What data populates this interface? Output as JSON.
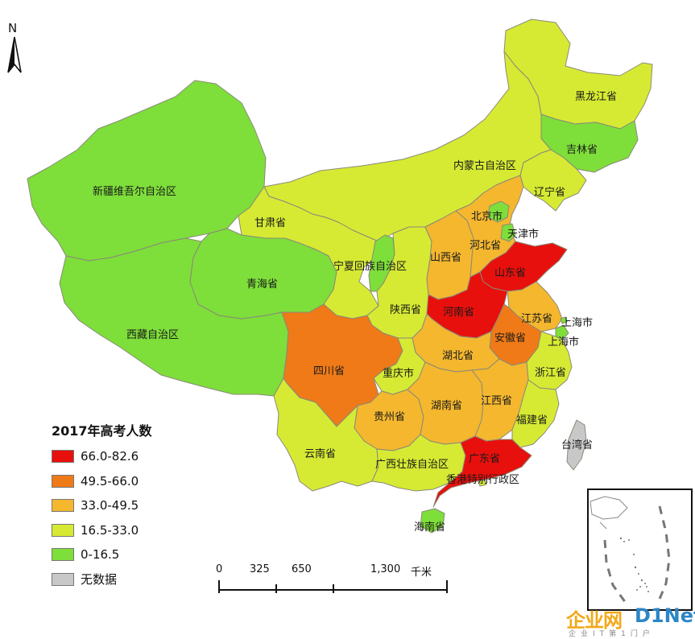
{
  "legend": {
    "title": "2017年高考人数",
    "classes": [
      {
        "range": "66.0-82.6",
        "color": "#e8100c"
      },
      {
        "range": "49.5-66.0",
        "color": "#ef7a17"
      },
      {
        "range": "33.0-49.5",
        "color": "#f4b72e"
      },
      {
        "range": "16.5-33.0",
        "color": "#d6ea33"
      },
      {
        "range": "0-16.5",
        "color": "#7ede3a"
      },
      {
        "range": "无数据",
        "color": "#c8c8c8"
      }
    ]
  },
  "north_arrow": {
    "label": "N"
  },
  "scale_bar": {
    "ticks": [
      "0",
      "325",
      "650",
      "1,300"
    ],
    "unit": "千米"
  },
  "provinces": [
    {
      "name": "黑龙江省",
      "class": 3
    },
    {
      "name": "吉林省",
      "class": 4
    },
    {
      "name": "辽宁省",
      "class": 3
    },
    {
      "name": "内蒙古自治区",
      "class": 3
    },
    {
      "name": "新疆维吾尔自治区",
      "class": 4
    },
    {
      "name": "西藏自治区",
      "class": 4
    },
    {
      "name": "青海省",
      "class": 4
    },
    {
      "name": "甘肃省",
      "class": 3
    },
    {
      "name": "宁夏回族自治区",
      "class": 4
    },
    {
      "name": "陕西省",
      "class": 3
    },
    {
      "name": "山西省",
      "class": 2
    },
    {
      "name": "河北省",
      "class": 2
    },
    {
      "name": "北京市",
      "class": 4
    },
    {
      "name": "天津市",
      "class": 4
    },
    {
      "name": "山东省",
      "class": 0
    },
    {
      "name": "河南省",
      "class": 0
    },
    {
      "name": "江苏省",
      "class": 2
    },
    {
      "name": "安徽省",
      "class": 1
    },
    {
      "name": "上海市",
      "class": 4
    },
    {
      "name": "上海市",
      "class": 4
    },
    {
      "name": "浙江省",
      "class": 3
    },
    {
      "name": "湖北省",
      "class": 2
    },
    {
      "name": "四川省",
      "class": 1
    },
    {
      "name": "重庆市",
      "class": 3
    },
    {
      "name": "贵州省",
      "class": 2
    },
    {
      "name": "湖南省",
      "class": 2
    },
    {
      "name": "江西省",
      "class": 2
    },
    {
      "name": "福建省",
      "class": 3
    },
    {
      "name": "台湾省",
      "class": 5
    },
    {
      "name": "云南省",
      "class": 3
    },
    {
      "name": "广西壮族自治区",
      "class": 3
    },
    {
      "name": "广东省",
      "class": 0
    },
    {
      "name": "香港特别行政区",
      "class": 3
    },
    {
      "name": "海南省",
      "class": 4
    }
  ],
  "watermark": {
    "main": "企业网",
    "net": "D1Net",
    "sub": "企业IT第1门户"
  }
}
